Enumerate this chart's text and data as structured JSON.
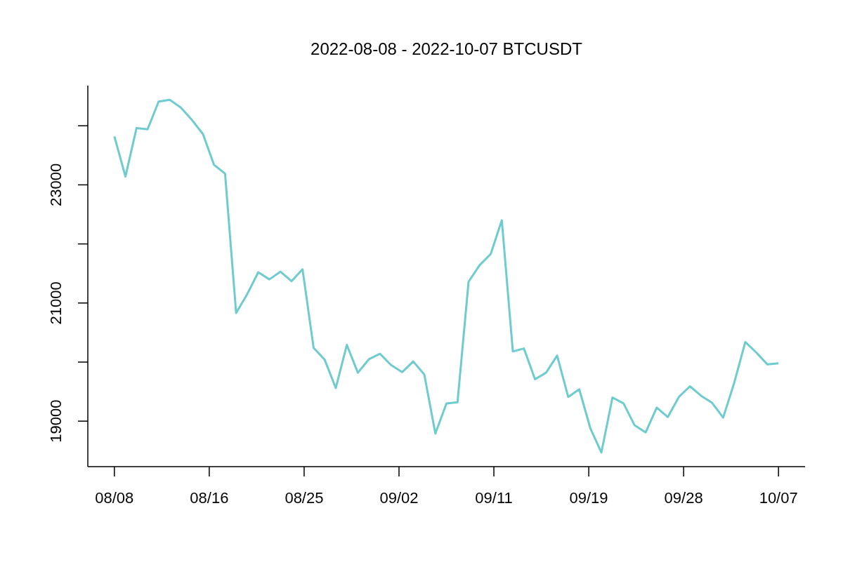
{
  "chart_data": {
    "type": "line",
    "title": "2022-08-08 - 2022-10-07 BTCUSDT",
    "x": [
      "2022-08-08",
      "2022-08-09",
      "2022-08-10",
      "2022-08-11",
      "2022-08-12",
      "2022-08-13",
      "2022-08-14",
      "2022-08-15",
      "2022-08-16",
      "2022-08-17",
      "2022-08-18",
      "2022-08-19",
      "2022-08-20",
      "2022-08-21",
      "2022-08-22",
      "2022-08-23",
      "2022-08-24",
      "2022-08-25",
      "2022-08-26",
      "2022-08-27",
      "2022-08-28",
      "2022-08-29",
      "2022-08-30",
      "2022-08-31",
      "2022-09-01",
      "2022-09-02",
      "2022-09-03",
      "2022-09-04",
      "2022-09-05",
      "2022-09-06",
      "2022-09-07",
      "2022-09-08",
      "2022-09-09",
      "2022-09-10",
      "2022-09-11",
      "2022-09-12",
      "2022-09-13",
      "2022-09-14",
      "2022-09-15",
      "2022-09-16",
      "2022-09-17",
      "2022-09-18",
      "2022-09-19",
      "2022-09-20",
      "2022-09-21",
      "2022-09-22",
      "2022-09-23",
      "2022-09-24",
      "2022-09-25",
      "2022-09-26",
      "2022-09-27",
      "2022-09-28",
      "2022-09-29",
      "2022-09-30",
      "2022-10-01",
      "2022-10-02",
      "2022-10-03",
      "2022-10-04",
      "2022-10-05",
      "2022-10-06",
      "2022-10-07"
    ],
    "series": [
      {
        "color": "#6ecbcf",
        "values": [
          23820,
          23140,
          23960,
          23940,
          24410,
          24440,
          24310,
          24100,
          23860,
          23340,
          23190,
          20830,
          21150,
          21520,
          21400,
          21530,
          21370,
          21570,
          20240,
          20040,
          19560,
          20290,
          19820,
          20050,
          20140,
          19950,
          19830,
          20010,
          19790,
          18790,
          19300,
          19320,
          21360,
          21640,
          21830,
          22400,
          20180,
          20230,
          19710,
          19820,
          20110,
          19410,
          19540,
          18880,
          18470,
          19400,
          19300,
          18930,
          18810,
          19230,
          19070,
          19410,
          19590,
          19430,
          19310,
          19060,
          19650,
          20340,
          20160,
          19960,
          19980
        ]
      }
    ],
    "xlim": [
      "2022-08-05T14:24",
      "2022-10-09T09:36"
    ],
    "xticks": [
      {
        "value": "2022-08-08T00:00",
        "label": "08/08"
      },
      {
        "value": "2022-08-16T13:43",
        "label": "08/16"
      },
      {
        "value": "2022-08-25T03:26",
        "label": "08/25"
      },
      {
        "value": "2022-09-02T17:09",
        "label": "09/02"
      },
      {
        "value": "2022-09-11T06:51",
        "label": "09/11"
      },
      {
        "value": "2022-09-19T20:34",
        "label": "09/19"
      },
      {
        "value": "2022-09-28T10:17",
        "label": "09/28"
      },
      {
        "value": "2022-10-07T00:00",
        "label": "10/07"
      }
    ],
    "ylim": [
      18230,
      24680
    ],
    "yticks": [
      19000,
      {
        "value": 20000,
        "label": null
      },
      21000,
      {
        "value": 22000,
        "label": null
      },
      23000,
      {
        "value": 24000,
        "label": null
      }
    ]
  }
}
